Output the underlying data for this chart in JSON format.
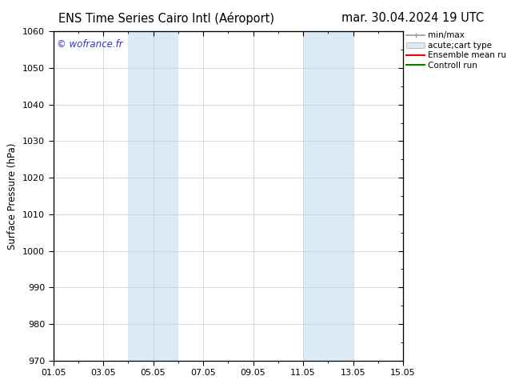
{
  "title_left": "ENS Time Series Cairo Intl (Aéroport)",
  "title_right": "mar. 30.04.2024 19 UTC",
  "ylabel": "Surface Pressure (hPa)",
  "ylim_bottom": 970,
  "ylim_top": 1060,
  "yticks": [
    970,
    980,
    990,
    1000,
    1010,
    1020,
    1030,
    1040,
    1050,
    1060
  ],
  "xticks_labels": [
    "01.05",
    "03.05",
    "05.05",
    "07.05",
    "09.05",
    "11.05",
    "13.05",
    "15.05"
  ],
  "xticks_pos": [
    0,
    2,
    4,
    6,
    8,
    10,
    12,
    14
  ],
  "shaded_regions": [
    {
      "xstart": 3.0,
      "xend": 5.0,
      "color": "#daeaf7"
    },
    {
      "xstart": 10.0,
      "xend": 12.0,
      "color": "#daeaf7"
    }
  ],
  "watermark_text": "© wofrance.fr",
  "watermark_color": "#3333cc",
  "legend_entries": [
    {
      "label": "min/max",
      "color": "#aaaaaa"
    },
    {
      "label": "acute;cart type",
      "color": "#daeaf7"
    },
    {
      "label": "Ensemble mean run",
      "color": "red"
    },
    {
      "label": "Controll run",
      "color": "green"
    }
  ],
  "bg_color": "#ffffff",
  "grid_color": "#cccccc",
  "title_fontsize": 10.5,
  "label_fontsize": 8.5,
  "tick_fontsize": 8,
  "legend_fontsize": 7.5
}
